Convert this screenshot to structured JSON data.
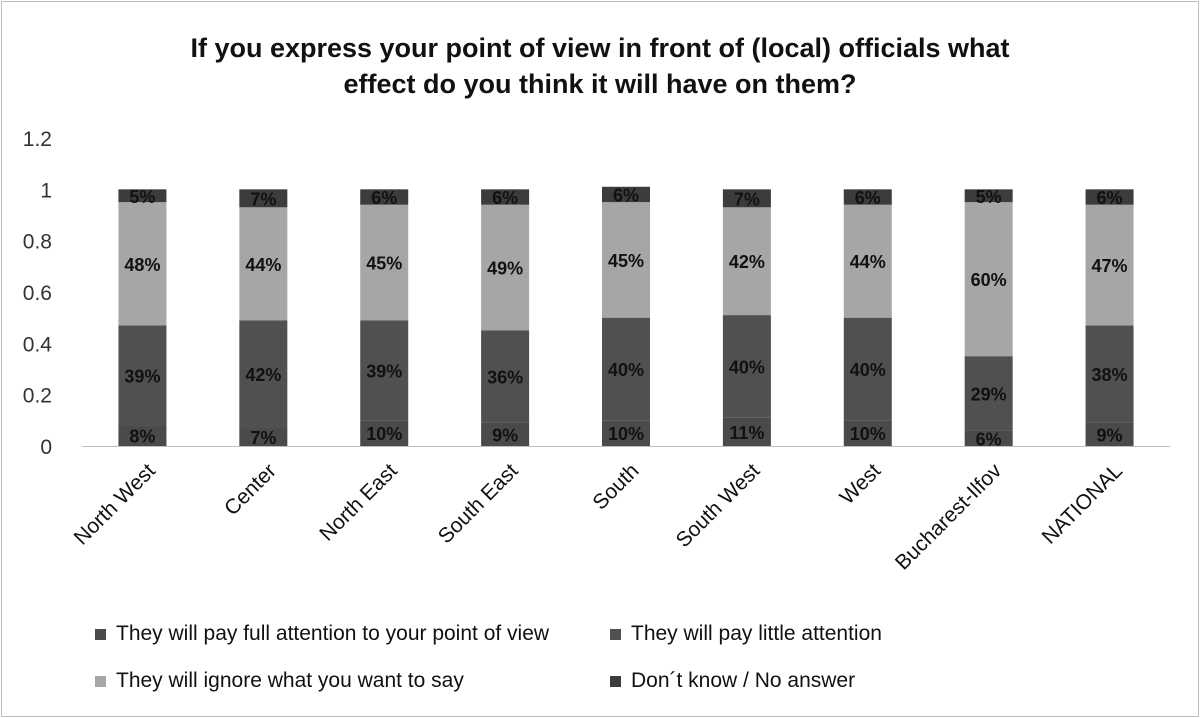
{
  "chart_data": {
    "type": "bar",
    "stacked": true,
    "title_lines": [
      "If you express your point of view in front of (local) officials what",
      "effect do you think it will have on them?"
    ],
    "categories": [
      "North West",
      "Center",
      "North East",
      "South East",
      "South",
      "South West",
      "West",
      "Bucharest-Ilfov",
      "NATIONAL"
    ],
    "series": [
      {
        "name": "They will pay full attention to your point of view",
        "color": "#4a4a4a",
        "values": [
          0.08,
          0.07,
          0.1,
          0.09,
          0.1,
          0.11,
          0.1,
          0.06,
          0.09
        ],
        "labels": [
          "8%",
          "7%",
          "10%",
          "9%",
          "10%",
          "11%",
          "10%",
          "6%",
          "9%"
        ]
      },
      {
        "name": "They will pay little attention",
        "color": "#505050",
        "values": [
          0.39,
          0.42,
          0.39,
          0.36,
          0.4,
          0.4,
          0.4,
          0.29,
          0.38
        ],
        "labels": [
          "39%",
          "42%",
          "39%",
          "36%",
          "40%",
          "40%",
          "40%",
          "29%",
          "38%"
        ]
      },
      {
        "name": "They will ignore what you want to say",
        "color": "#a6a6a6",
        "values": [
          0.48,
          0.44,
          0.45,
          0.49,
          0.45,
          0.42,
          0.44,
          0.6,
          0.47
        ],
        "labels": [
          "48%",
          "44%",
          "45%",
          "49%",
          "45%",
          "42%",
          "44%",
          "60%",
          "47%"
        ]
      },
      {
        "name": "Don´t know / No answer",
        "color": "#3c3c3c",
        "values": [
          0.05,
          0.07,
          0.06,
          0.06,
          0.06,
          0.07,
          0.06,
          0.05,
          0.06
        ],
        "labels": [
          "5%",
          "7%",
          "6%",
          "6%",
          "6%",
          "7%",
          "6%",
          "5%",
          "6%"
        ]
      }
    ],
    "yticks": [
      "0",
      "0.2",
      "0.4",
      "0.6",
      "0.8",
      "1",
      "1.2"
    ],
    "ylim": [
      0,
      1.2
    ],
    "grid": false,
    "legend_position": "bottom"
  }
}
